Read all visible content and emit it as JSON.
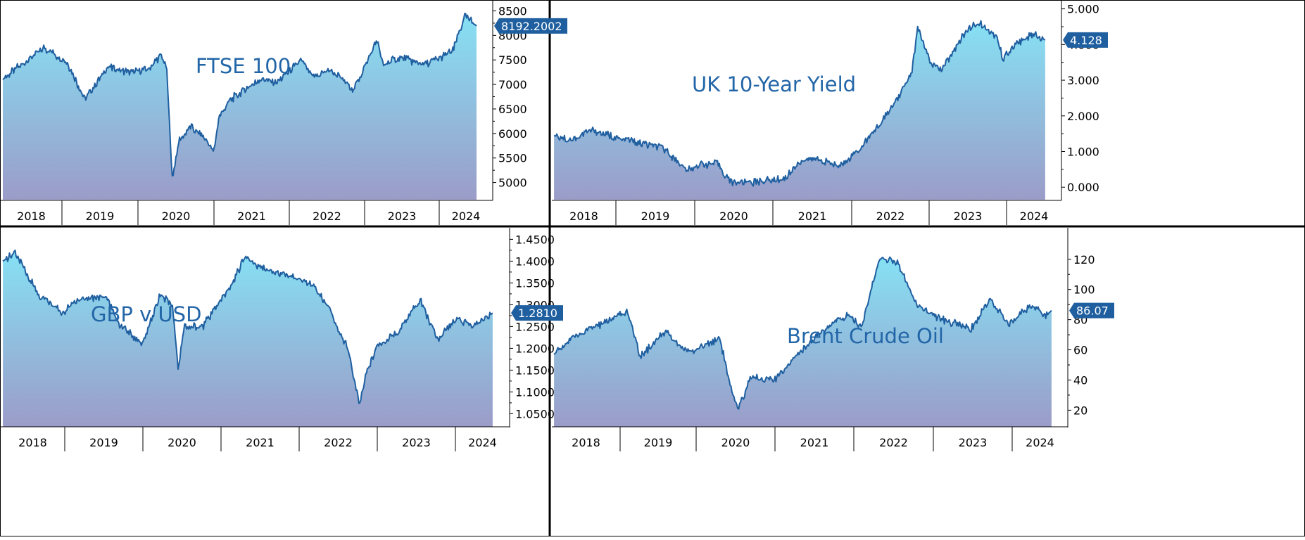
{
  "colors": {
    "line": "#1f5fa0",
    "fill_top": "#86e1f4",
    "fill_bottom": "#9b9cc8",
    "badge": "#1f5fa0",
    "title": "#2366a8",
    "frame": "#000000"
  },
  "chart_data": [
    {
      "type": "area",
      "title": "FTSE 100",
      "x_tick_labels": [
        "2018",
        "2019",
        "2020",
        "2021",
        "2022",
        "2023",
        "2024"
      ],
      "y_tick_labels": [
        "5000",
        "5500",
        "6000",
        "6500",
        "7000",
        "7500",
        "8000",
        "8500"
      ],
      "ylim": [
        4650,
        8650
      ],
      "last_value": 8192.2002,
      "last_value_label": "8192.2002",
      "x": [
        "2017-10",
        "2018-01",
        "2018-05",
        "2018-09",
        "2018-12",
        "2019-04",
        "2019-08",
        "2019-11",
        "2020-01",
        "2020-02",
        "2020-03",
        "2020-04",
        "2020-06",
        "2020-09",
        "2020-10",
        "2020-11",
        "2021-01",
        "2021-06",
        "2021-09",
        "2022-01",
        "2022-03",
        "2022-06",
        "2022-10",
        "2023-02",
        "2023-03",
        "2023-06",
        "2023-10",
        "2024-01",
        "2024-03",
        "2024-05",
        "2024-07"
      ],
      "values": [
        7100,
        7400,
        7750,
        7450,
        6700,
        7350,
        7250,
        7300,
        7600,
        7350,
        5050,
        5800,
        6150,
        5850,
        5600,
        6350,
        6700,
        7100,
        7050,
        7500,
        7150,
        7300,
        6900,
        7900,
        7400,
        7550,
        7400,
        7550,
        7700,
        8400,
        8192.2
      ]
    },
    {
      "type": "area",
      "title": "UK 10-Year Yield",
      "x_tick_labels": [
        "2018",
        "2019",
        "2020",
        "2021",
        "2022",
        "2023",
        "2024"
      ],
      "y_tick_labels": [
        "0.000",
        "1.000",
        "2.000",
        "3.000",
        "4.000",
        "5.000"
      ],
      "ylim": [
        -0.35,
        5.15
      ],
      "last_value": 4.128,
      "last_value_label": "4.128",
      "x": [
        "2017-10",
        "2018-01",
        "2018-04",
        "2018-09",
        "2019-01",
        "2019-04",
        "2019-08",
        "2019-10",
        "2020-01",
        "2020-03",
        "2020-07",
        "2020-12",
        "2021-03",
        "2021-06",
        "2021-09",
        "2021-12",
        "2022-03",
        "2022-06",
        "2022-09",
        "2022-10",
        "2022-12",
        "2023-02",
        "2023-06",
        "2023-08",
        "2023-11",
        "2023-12",
        "2024-02",
        "2024-05",
        "2024-07"
      ],
      "values": [
        1.45,
        1.3,
        1.6,
        1.35,
        1.2,
        1.1,
        0.45,
        0.65,
        0.65,
        0.15,
        0.15,
        0.25,
        0.8,
        0.75,
        0.6,
        1.0,
        1.6,
        2.3,
        3.2,
        4.5,
        3.5,
        3.3,
        4.4,
        4.6,
        4.2,
        3.6,
        4.0,
        4.3,
        4.128
      ]
    },
    {
      "type": "area",
      "title": "GBP v USD",
      "x_tick_labels": [
        "2018",
        "2019",
        "2020",
        "2021",
        "2022",
        "2023",
        "2024"
      ],
      "y_tick_labels": [
        "1.0500",
        "1.1000",
        "1.1500",
        "1.2000",
        "1.2500",
        "1.3000",
        "1.3500",
        "1.4000",
        "1.4500"
      ],
      "ylim": [
        1.02,
        1.47
      ],
      "last_value": 1.281,
      "last_value_label": "1.2810",
      "x": [
        "2017-10",
        "2017-12",
        "2018-04",
        "2018-08",
        "2018-10",
        "2019-03",
        "2019-05",
        "2019-09",
        "2019-12",
        "2020-02",
        "2020-03",
        "2020-04",
        "2020-07",
        "2020-12",
        "2021-02",
        "2021-04",
        "2021-08",
        "2022-01",
        "2022-04",
        "2022-07",
        "2022-09",
        "2022-10",
        "2022-12",
        "2023-03",
        "2023-07",
        "2023-10",
        "2024-01",
        "2024-04",
        "2024-07"
      ],
      "values": [
        1.4,
        1.42,
        1.32,
        1.28,
        1.31,
        1.32,
        1.26,
        1.21,
        1.32,
        1.3,
        1.15,
        1.25,
        1.25,
        1.35,
        1.41,
        1.39,
        1.37,
        1.35,
        1.29,
        1.2,
        1.07,
        1.14,
        1.21,
        1.23,
        1.31,
        1.22,
        1.27,
        1.25,
        1.281
      ]
    },
    {
      "type": "area",
      "title": "Brent Crude Oil",
      "x_tick_labels": [
        "2018",
        "2019",
        "2020",
        "2021",
        "2022",
        "2023",
        "2024"
      ],
      "y_tick_labels": [
        "20",
        "40",
        "60",
        "80",
        "100",
        "120"
      ],
      "ylim": [
        9,
        139
      ],
      "last_value": 86.07,
      "last_value_label": "86.07",
      "x": [
        "2017-10",
        "2018-01",
        "2018-05",
        "2018-10",
        "2018-12",
        "2019-04",
        "2019-08",
        "2020-01",
        "2020-03",
        "2020-04",
        "2020-06",
        "2020-10",
        "2021-01",
        "2021-06",
        "2021-10",
        "2021-12",
        "2022-03",
        "2022-06",
        "2022-09",
        "2022-12",
        "2023-03",
        "2023-06",
        "2023-09",
        "2023-12",
        "2024-04",
        "2024-06",
        "2024-07"
      ],
      "values": [
        57,
        68,
        76,
        85,
        55,
        72,
        58,
        68,
        30,
        20,
        42,
        40,
        55,
        73,
        84,
        75,
        120,
        118,
        90,
        82,
        78,
        74,
        94,
        77,
        90,
        82,
        86.07
      ]
    }
  ]
}
